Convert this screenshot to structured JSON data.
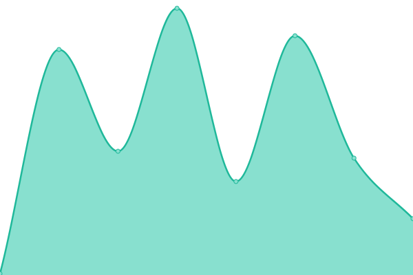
{
  "chart_data": {
    "type": "area",
    "categories": [
      null,
      null,
      null,
      null,
      null,
      null,
      null,
      null
    ],
    "series": [
      {
        "color": "#1fb89a",
        "values": [
          0.5,
          82,
          45,
          97,
          34,
          87,
          42.5,
          20.5
        ]
      }
    ],
    "fill_color": "#88e0cf",
    "ylim": [
      0,
      100
    ]
  }
}
